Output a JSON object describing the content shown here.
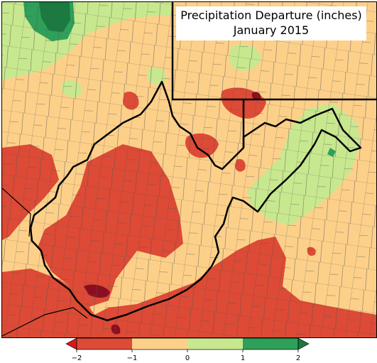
{
  "title": {
    "line1": "Precipitation Departure (inches)",
    "line2": "January 2015"
  },
  "legend": {
    "ticks": [
      "−2",
      "−1",
      "0",
      "1",
      "2"
    ],
    "classes": [
      {
        "range": "< -2",
        "color": "#d7191c"
      },
      {
        "range": "-2 to -1",
        "color": "#dd4a35"
      },
      {
        "range": "-1 to 0",
        "color": "#fdd08a"
      },
      {
        "range": "0 to 1",
        "color": "#c8e88f"
      },
      {
        "range": "1 to 2",
        "color": "#2ea05a"
      },
      {
        "range": "> 2",
        "color": "#1a7a40"
      }
    ]
  },
  "colors": {
    "dry_heavy": "#8b0e20",
    "dry": "#dd4a35",
    "slightly_dry": "#fdd08a",
    "slightly_wet": "#c8e88f",
    "wet": "#2ea05a",
    "wet_heavy": "#1a7a40",
    "border": "#000000"
  }
}
